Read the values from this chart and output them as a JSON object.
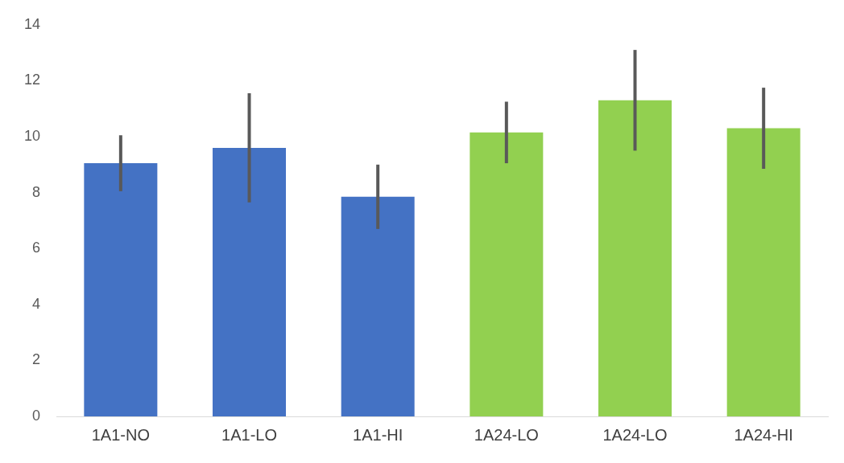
{
  "chart_data": {
    "type": "bar",
    "categories": [
      "1A1-NO",
      "1A1-LO",
      "1A1-HI",
      "1A24-LO",
      "1A24-LO",
      "1A24-HI"
    ],
    "values": [
      9.05,
      9.6,
      7.85,
      10.15,
      11.3,
      10.3
    ],
    "errors": [
      1.0,
      1.95,
      1.15,
      1.1,
      1.8,
      1.45
    ],
    "colors": [
      "#4472c4",
      "#4472c4",
      "#4472c4",
      "#92d050",
      "#92d050",
      "#92d050"
    ],
    "ylim": [
      0,
      14
    ],
    "yticks": [
      0,
      2,
      4,
      6,
      8,
      10,
      12,
      14
    ],
    "grid": false,
    "legend": false
  }
}
